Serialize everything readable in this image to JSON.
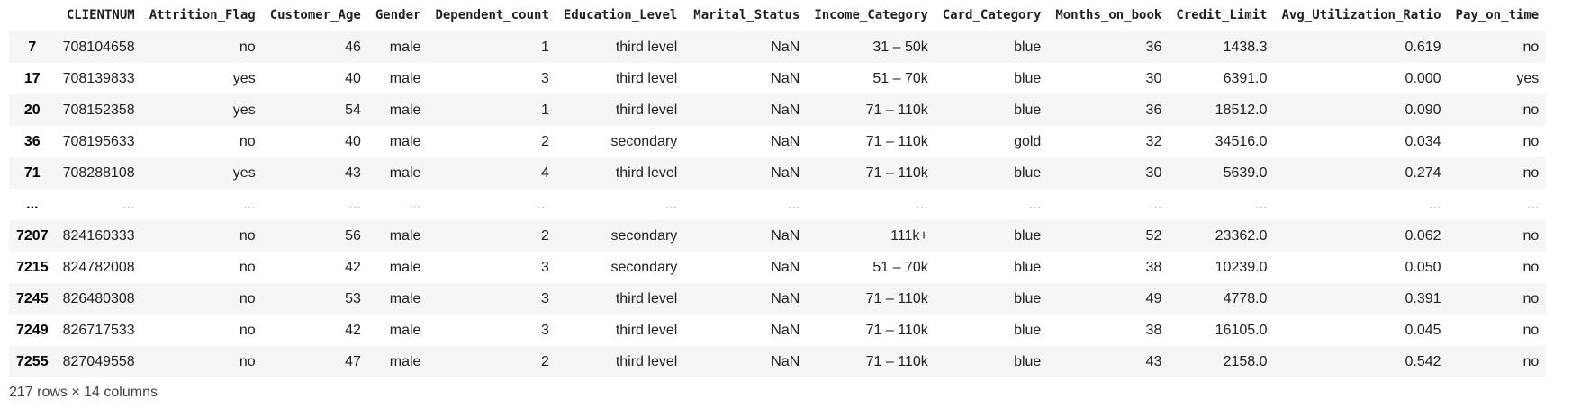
{
  "table": {
    "columns": [
      "",
      "CLIENTNUM",
      "Attrition_Flag",
      "Customer_Age",
      "Gender",
      "Dependent_count",
      "Education_Level",
      "Marital_Status",
      "Income_Category",
      "Card_Category",
      "Months_on_book",
      "Credit_Limit",
      "Avg_Utilization_Ratio",
      "Pay_on_time"
    ],
    "rows": [
      {
        "index": "7",
        "cells": [
          "708104658",
          "no",
          "46",
          "male",
          "1",
          "third level",
          "NaN",
          "31 – 50k",
          "blue",
          "36",
          "1438.3",
          "0.619",
          "no"
        ]
      },
      {
        "index": "17",
        "cells": [
          "708139833",
          "yes",
          "40",
          "male",
          "3",
          "third level",
          "NaN",
          "51 – 70k",
          "blue",
          "30",
          "6391.0",
          "0.000",
          "yes"
        ]
      },
      {
        "index": "20",
        "cells": [
          "708152358",
          "yes",
          "54",
          "male",
          "1",
          "third level",
          "NaN",
          "71 – 110k",
          "blue",
          "36",
          "18512.0",
          "0.090",
          "no"
        ]
      },
      {
        "index": "36",
        "cells": [
          "708195633",
          "no",
          "40",
          "male",
          "2",
          "secondary",
          "NaN",
          "71 – 110k",
          "gold",
          "32",
          "34516.0",
          "0.034",
          "no"
        ]
      },
      {
        "index": "71",
        "cells": [
          "708288108",
          "yes",
          "43",
          "male",
          "4",
          "third level",
          "NaN",
          "71 – 110k",
          "blue",
          "30",
          "5639.0",
          "0.274",
          "no"
        ]
      },
      {
        "index": "...",
        "ellipsis": true,
        "cells": [
          "...",
          "...",
          "...",
          "...",
          "...",
          "...",
          "...",
          "...",
          "...",
          "...",
          "...",
          "...",
          "..."
        ]
      },
      {
        "index": "7207",
        "cells": [
          "824160333",
          "no",
          "56",
          "male",
          "2",
          "secondary",
          "NaN",
          "111k+",
          "blue",
          "52",
          "23362.0",
          "0.062",
          "no"
        ]
      },
      {
        "index": "7215",
        "cells": [
          "824782008",
          "no",
          "42",
          "male",
          "3",
          "secondary",
          "NaN",
          "51 – 70k",
          "blue",
          "38",
          "10239.0",
          "0.050",
          "no"
        ]
      },
      {
        "index": "7245",
        "cells": [
          "826480308",
          "no",
          "53",
          "male",
          "3",
          "third level",
          "NaN",
          "71 – 110k",
          "blue",
          "49",
          "4778.0",
          "0.391",
          "no"
        ]
      },
      {
        "index": "7249",
        "cells": [
          "826717533",
          "no",
          "42",
          "male",
          "3",
          "third level",
          "NaN",
          "71 – 110k",
          "blue",
          "38",
          "16105.0",
          "0.045",
          "no"
        ]
      },
      {
        "index": "7255",
        "cells": [
          "827049558",
          "no",
          "47",
          "male",
          "2",
          "third level",
          "NaN",
          "71 – 110k",
          "blue",
          "43",
          "2158.0",
          "0.542",
          "no"
        ]
      }
    ]
  },
  "footer": {
    "shape_text": "217 rows × 14 columns"
  }
}
